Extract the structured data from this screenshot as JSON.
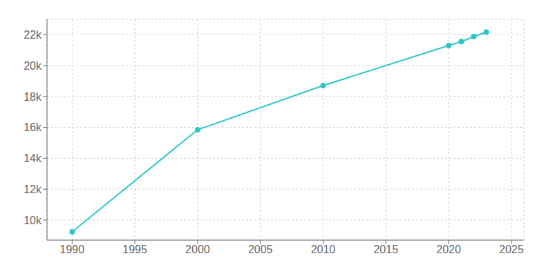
{
  "chart_data": {
    "type": "line",
    "x": [
      1990,
      2000,
      2010,
      2020,
      2021,
      2022,
      2023
    ],
    "values": [
      9240,
      15848,
      18712,
      21299,
      21554,
      21884,
      22176
    ],
    "color": "#2dc6c6",
    "marker": "circle",
    "xlim": [
      1988,
      2026
    ],
    "ylim": [
      8700,
      23000
    ],
    "xticks": [
      1990,
      1995,
      2000,
      2005,
      2010,
      2015,
      2020,
      2025
    ],
    "yticks": [
      {
        "value": 10000,
        "label": "10k"
      },
      {
        "value": 12000,
        "label": "12k"
      },
      {
        "value": 14000,
        "label": "14k"
      },
      {
        "value": 16000,
        "label": "16k"
      },
      {
        "value": 18000,
        "label": "18k"
      },
      {
        "value": 20000,
        "label": "20k"
      },
      {
        "value": 22000,
        "label": "22k"
      }
    ],
    "grid": true
  }
}
